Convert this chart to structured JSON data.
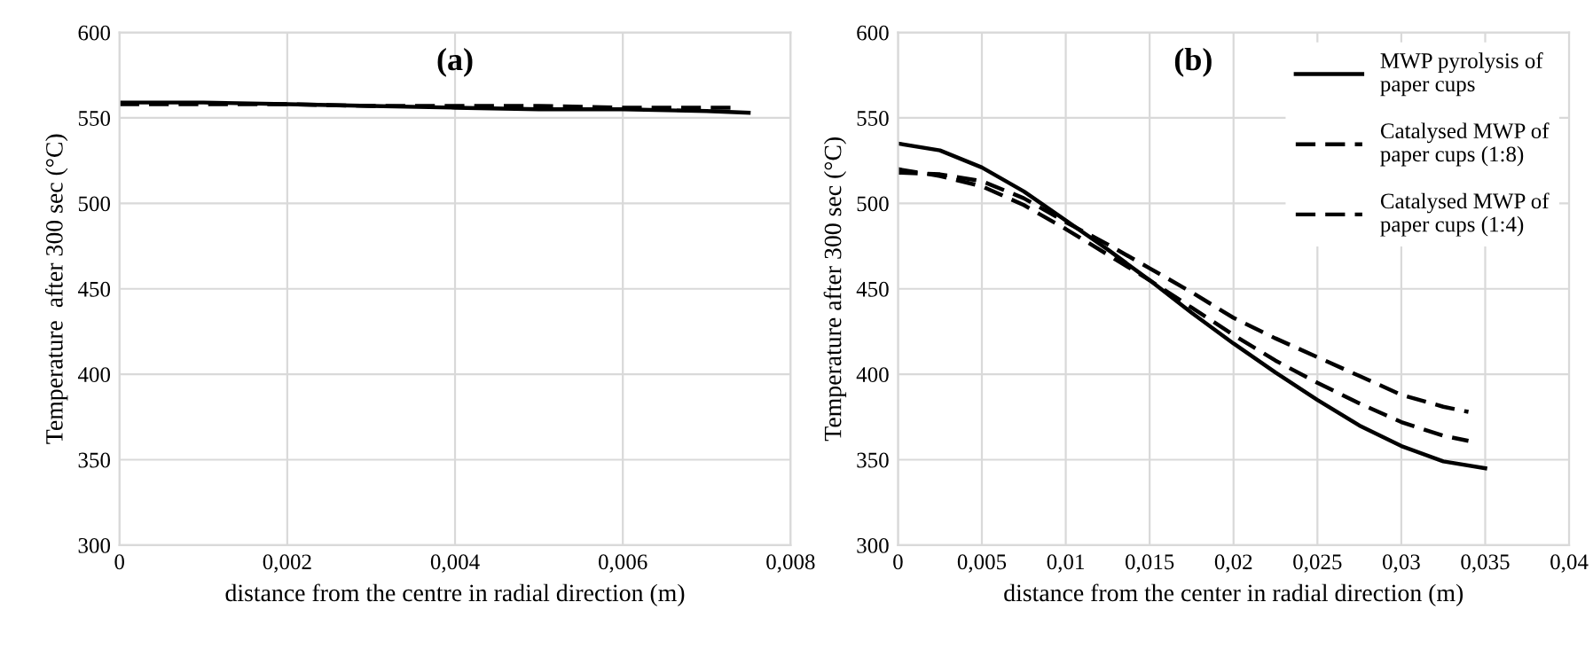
{
  "chart_data": [
    {
      "type": "line",
      "xlabel": "distance from the centre in radial direction (m)",
      "ylabel": "Temperature  after 300 sec (°C)",
      "annotations": [
        "(a)"
      ],
      "xlim": [
        0,
        0.008
      ],
      "ylim": [
        300,
        600
      ],
      "xticks": [
        0,
        {
          "value": 0.002,
          "label": "0,002"
        },
        {
          "value": 0.004,
          "label": "0,004"
        },
        {
          "value": 0.006,
          "label": "0,006"
        },
        {
          "value": 0.008,
          "label": "0,008"
        }
      ],
      "yticks": [
        300,
        350,
        400,
        450,
        500,
        550,
        600
      ],
      "grid": true,
      "legend": false,
      "series": [
        {
          "color": "#000000",
          "line_style": "dashed",
          "x": [
            0,
            0.001,
            0.002,
            0.003,
            0.004,
            0.005,
            0.006,
            0.007,
            0.0074
          ],
          "values": [
            558,
            558,
            558,
            557,
            557,
            557,
            556,
            556,
            556
          ]
        },
        {
          "color": "#000000",
          "line_style": "solid",
          "x": [
            0,
            0.001,
            0.002,
            0.003,
            0.004,
            0.005,
            0.006,
            0.007,
            0.0075
          ],
          "values": [
            559,
            559,
            558,
            557,
            556,
            555,
            555,
            554,
            553
          ]
        }
      ]
    },
    {
      "type": "line",
      "xlabel": "distance from the center in radial direction (m)",
      "ylabel": "Temperature after 300 sec (°C)",
      "annotations": [
        "(b)"
      ],
      "xlim": [
        0,
        0.04
      ],
      "ylim": [
        300,
        600
      ],
      "xticks": [
        0,
        {
          "value": 0.005,
          "label": "0,005"
        },
        {
          "value": 0.01,
          "label": "0,01"
        },
        {
          "value": 0.015,
          "label": "0,015"
        },
        {
          "value": 0.02,
          "label": "0,02"
        },
        {
          "value": 0.025,
          "label": "0,025"
        },
        {
          "value": 0.03,
          "label": "0,03"
        },
        {
          "value": 0.035,
          "label": "0,035"
        },
        {
          "value": 0.04,
          "label": "0,04"
        }
      ],
      "yticks": [
        300,
        350,
        400,
        450,
        500,
        550,
        600
      ],
      "grid": true,
      "legend": "top right",
      "series": [
        {
          "name": "MWP pyrolysis of paper cups",
          "color": "#000000",
          "line_style": "solid",
          "x": [
            0,
            0.0025,
            0.005,
            0.0075,
            0.01,
            0.0125,
            0.015,
            0.0175,
            0.02,
            0.0225,
            0.025,
            0.0275,
            0.03,
            0.0325,
            0.035
          ],
          "values": [
            535,
            531,
            521,
            507,
            490,
            473,
            455,
            436,
            418,
            401,
            385,
            370,
            358,
            349,
            345
          ]
        },
        {
          "name": "Catalysed MWP of paper cups (1:8)",
          "color": "#000000",
          "line_style": "dashed",
          "x": [
            0,
            0.0025,
            0.005,
            0.0075,
            0.01,
            0.0125,
            0.015,
            0.0175,
            0.02,
            0.0225,
            0.025,
            0.0275,
            0.03,
            0.0325,
            0.034
          ],
          "values": [
            520,
            516,
            510,
            499,
            485,
            470,
            455,
            439,
            423,
            408,
            395,
            383,
            372,
            364,
            361
          ]
        },
        {
          "name": "Catalysed MWP of paper cups (1:4)",
          "color": "#000000",
          "line_style": "dashed",
          "x": [
            0,
            0.0025,
            0.005,
            0.0075,
            0.01,
            0.0125,
            0.015,
            0.0175,
            0.02,
            0.0225,
            0.025,
            0.0275,
            0.03,
            0.0325,
            0.034
          ],
          "values": [
            518,
            517,
            513,
            503,
            489,
            476,
            462,
            448,
            433,
            421,
            410,
            399,
            388,
            381,
            378
          ]
        }
      ]
    }
  ]
}
